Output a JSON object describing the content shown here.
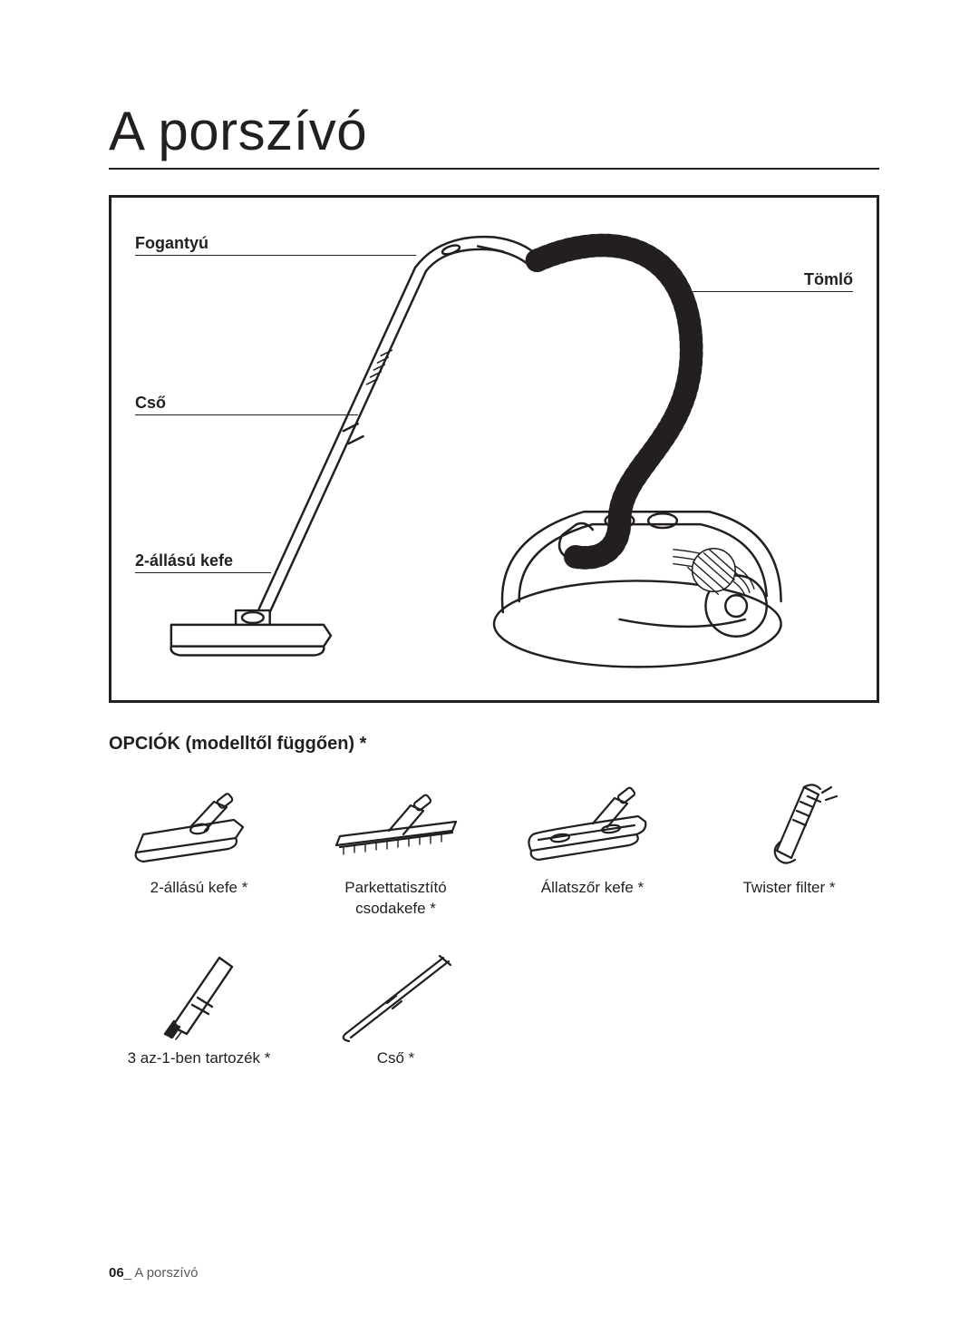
{
  "title": "A porszívó",
  "diagram": {
    "labels": {
      "handle": "Fogantyú",
      "hose": "Tömlő",
      "tube": "Cső",
      "brush": "2-állású kefe"
    },
    "stroke": "#231f20",
    "hose_fill": "#c8c8c8"
  },
  "options_heading": "OPCIÓK (modelltől függően) *",
  "options": [
    {
      "key": "brush2",
      "label": "2-állású kefe *"
    },
    {
      "key": "parquet",
      "label": "Parkettatisztító\ncsodakefe *"
    },
    {
      "key": "pet",
      "label": "Állatszőr kefe *"
    },
    {
      "key": "twister",
      "label": "Twister filter *"
    },
    {
      "key": "3in1",
      "label": "3 az-1-ben tartozék *"
    },
    {
      "key": "tube",
      "label": "Cső *"
    }
  ],
  "footer": {
    "page_num": "06",
    "separator": "_ ",
    "section": "A porszívó"
  },
  "colors": {
    "ink": "#231f20"
  }
}
